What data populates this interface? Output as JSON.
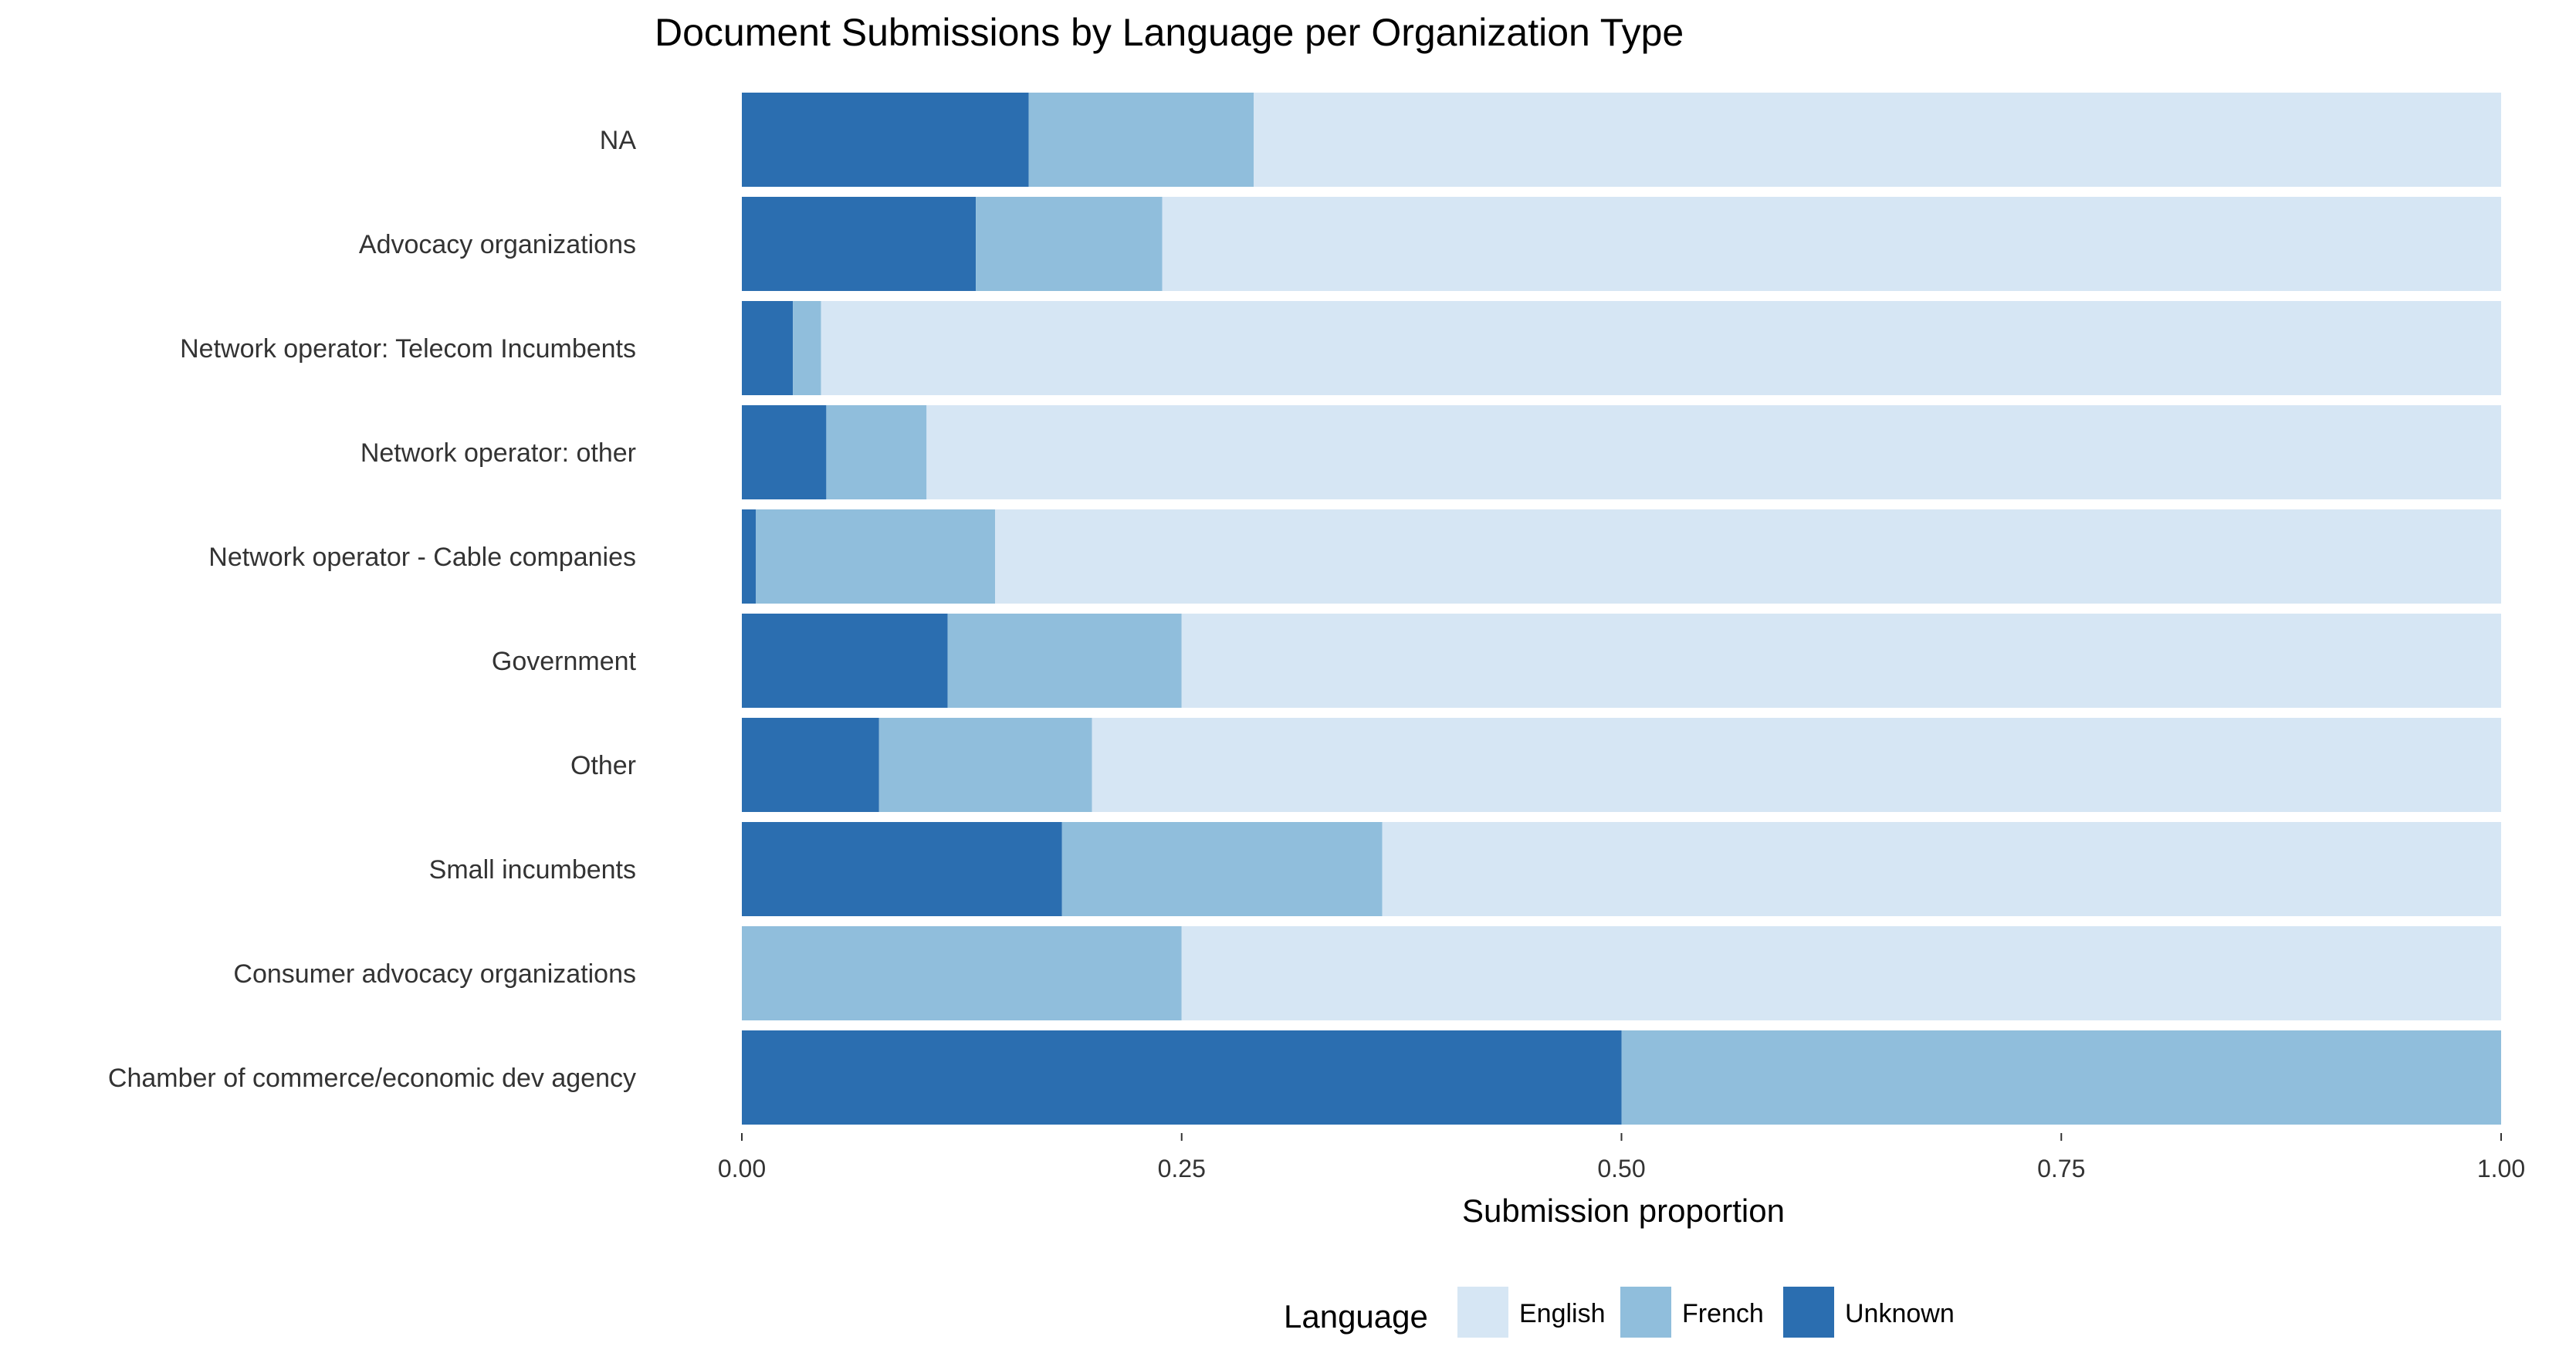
{
  "chart_data": {
    "type": "bar",
    "orientation": "horizontal",
    "stacked": true,
    "title": "Document Submissions by Language per Organization Type",
    "xlabel": "Submission proportion",
    "ylabel": "",
    "xlim": [
      0,
      1
    ],
    "x_ticks": [
      0,
      0.25,
      0.5,
      0.75,
      1
    ],
    "x_tick_labels": [
      "0.00",
      "0.25",
      "0.50",
      "0.75",
      "1.00"
    ],
    "grid": false,
    "legend_position": "bottom",
    "legend_title": "Language",
    "categories": [
      "NA",
      "Advocacy organizations",
      "Network operator: Telecom Incumbents",
      "Network operator: other",
      "Network operator - Cable companies",
      "Government",
      "Other",
      "Small incumbents",
      "Consumer advocacy organizations",
      "Chamber of commerce/economic dev agency"
    ],
    "series": [
      {
        "name": "Unknown",
        "color": "#2b6eb0",
        "values": [
          0.163,
          0.133,
          0.029,
          0.048,
          0.008,
          0.117,
          0.078,
          0.182,
          0.0,
          0.5
        ]
      },
      {
        "name": "French",
        "color": "#90bedc",
        "values": [
          0.128,
          0.106,
          0.016,
          0.057,
          0.136,
          0.133,
          0.121,
          0.182,
          0.25,
          0.5
        ]
      },
      {
        "name": "English",
        "color": "#d6e6f4",
        "values": [
          0.709,
          0.761,
          0.955,
          0.895,
          0.856,
          0.75,
          0.801,
          0.636,
          0.75,
          0.0
        ]
      }
    ],
    "legend_order": [
      "English",
      "French",
      "Unknown"
    ]
  }
}
